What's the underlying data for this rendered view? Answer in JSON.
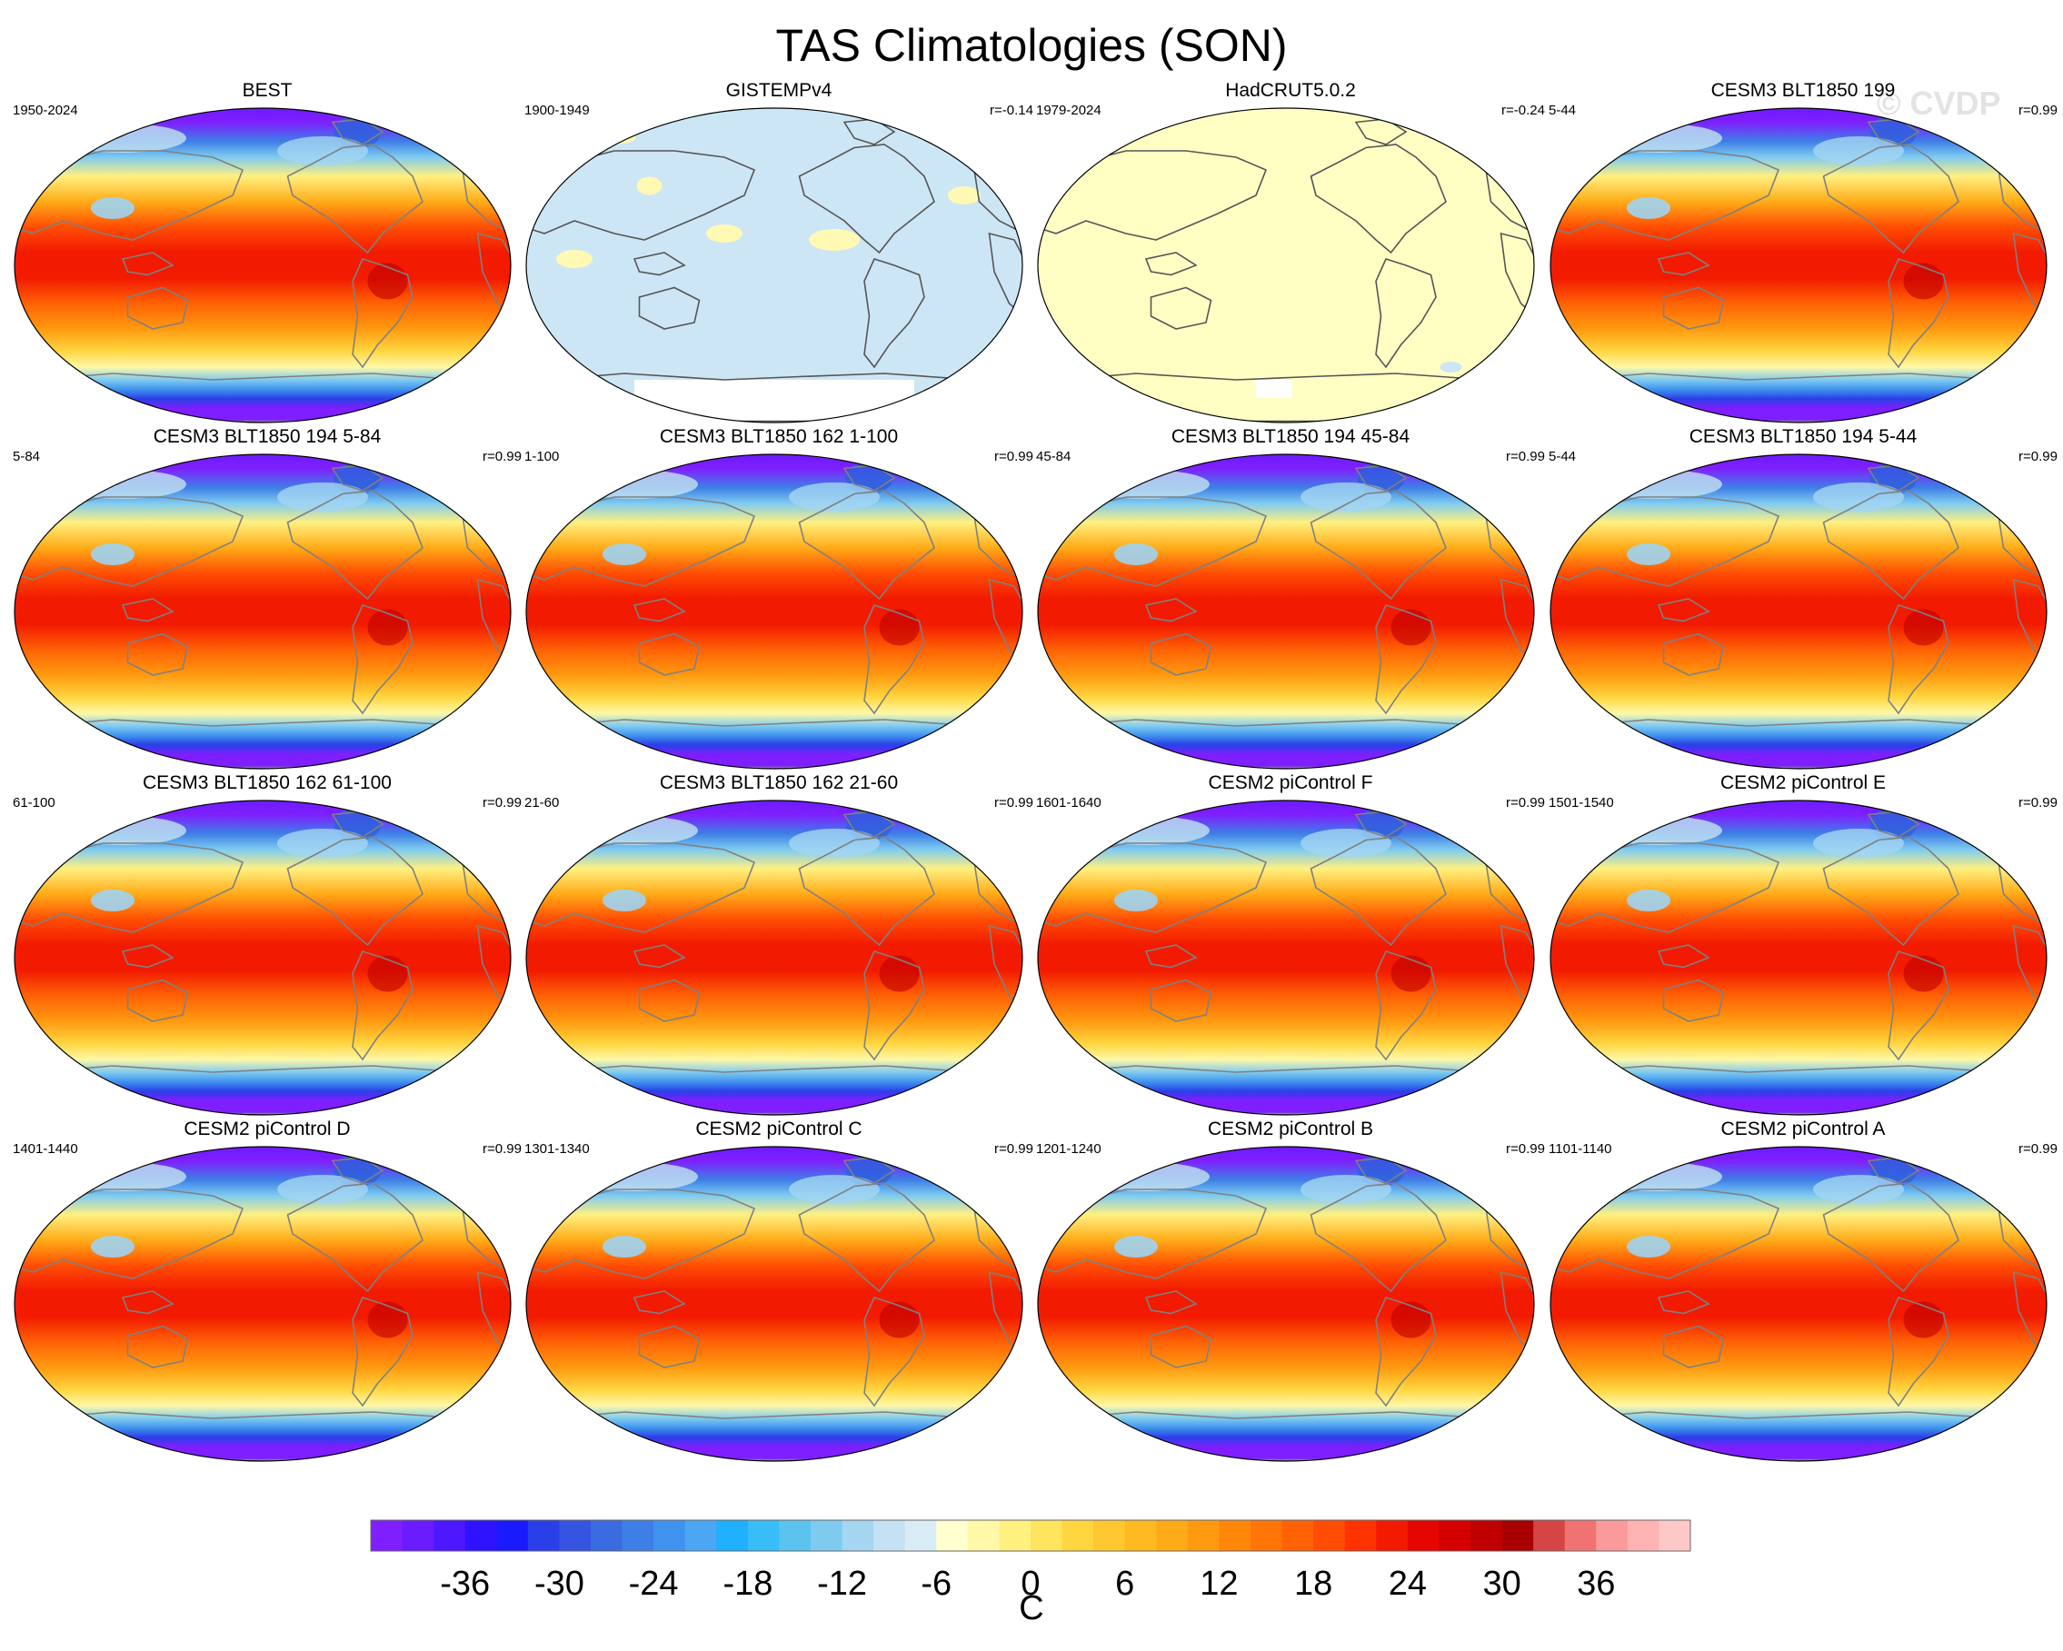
{
  "chart_data": {
    "type": "heatmap",
    "title": "TAS Climatologies (SON)",
    "watermark": "© CVDP",
    "colorbar": {
      "unit": "C",
      "min": -42,
      "max": 42,
      "step": 2,
      "tick_values": [
        -36,
        -30,
        -24,
        -18,
        -12,
        -6,
        0,
        6,
        12,
        18,
        24,
        30,
        36
      ],
      "tick_labels": [
        "-36",
        "-30",
        "-24",
        "-18",
        "-12",
        "-6",
        "0",
        "6",
        "12",
        "18",
        "24",
        "30",
        "36"
      ],
      "colors": [
        "#7f1fff",
        "#6a1bff",
        "#4d17ff",
        "#2f12ff",
        "#1a1aff",
        "#2a3fe8",
        "#3555e0",
        "#3a6be0",
        "#3d7fe6",
        "#3f93ee",
        "#4ba6f4",
        "#1fb0ff",
        "#38bdf8",
        "#5cc3f0",
        "#7fcbf0",
        "#a4d6f2",
        "#c4e2f3",
        "#d9ecf6",
        "#ffffcf",
        "#fff8a8",
        "#fff080",
        "#ffe45e",
        "#ffd640",
        "#ffc830",
        "#ffba22",
        "#ffab17",
        "#ff9a10",
        "#ff870a",
        "#ff7508",
        "#ff6205",
        "#ff4d03",
        "#ff3300",
        "#f21a00",
        "#e60600",
        "#d40000",
        "#c00000",
        "#a80000",
        "#d64545",
        "#ef7373",
        "#fa9a9a",
        "#ffb3b3",
        "#ffc8c8"
      ]
    },
    "panels": [
      {
        "title": "BEST",
        "years": "1950-2024",
        "r": "",
        "style": "obs"
      },
      {
        "title": "GISTEMPv4",
        "years": "1900-1949",
        "r": "r=-0.14",
        "style": "gistemp"
      },
      {
        "title": "HadCRUT5.0.2",
        "years": "1979-2024",
        "r": "r=-0.24",
        "style": "hadcrut"
      },
      {
        "title": "CESM3 BLT1850 199",
        "years": "5-44",
        "r": "r=0.99",
        "style": "model"
      },
      {
        "title": "CESM3 BLT1850 194 5-84",
        "years": "5-84",
        "r": "r=0.99",
        "style": "model"
      },
      {
        "title": "CESM3 BLT1850 162 1-100",
        "years": "1-100",
        "r": "r=0.99",
        "style": "model"
      },
      {
        "title": "CESM3 BLT1850 194 45-84",
        "years": "45-84",
        "r": "r=0.99",
        "style": "model"
      },
      {
        "title": "CESM3 BLT1850 194 5-44",
        "years": "5-44",
        "r": "r=0.99",
        "style": "model"
      },
      {
        "title": "CESM3 BLT1850 162 61-100",
        "years": "61-100",
        "r": "r=0.99",
        "style": "model"
      },
      {
        "title": "CESM3 BLT1850 162 21-60",
        "years": "21-60",
        "r": "r=0.99",
        "style": "model"
      },
      {
        "title": "CESM2 piControl F",
        "years": "1601-1640",
        "r": "r=0.99",
        "style": "model"
      },
      {
        "title": "CESM2 piControl E",
        "years": "1501-1540",
        "r": "r=0.99",
        "style": "model"
      },
      {
        "title": "CESM2 piControl D",
        "years": "1401-1440",
        "r": "r=0.99",
        "style": "model"
      },
      {
        "title": "CESM2 piControl C",
        "years": "1301-1340",
        "r": "r=0.99",
        "style": "model"
      },
      {
        "title": "CESM2 piControl B",
        "years": "1201-1240",
        "r": "r=0.99",
        "style": "model"
      },
      {
        "title": "CESM2 piControl A",
        "years": "1101-1140",
        "r": "r=0.99",
        "style": "model"
      }
    ]
  }
}
